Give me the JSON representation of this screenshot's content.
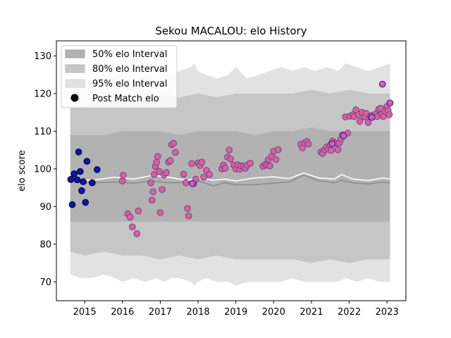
{
  "chart_data": {
    "type": "scatter",
    "title": "Sekou MACALOU: elo History",
    "xlabel": "",
    "ylabel": "elo score",
    "xlim": [
      2014.25,
      2023.5
    ],
    "ylim": [
      65,
      134
    ],
    "x_ticks": [
      2015,
      2016,
      2017,
      2018,
      2019,
      2020,
      2021,
      2022,
      2023
    ],
    "y_ticks": [
      70,
      80,
      90,
      100,
      110,
      120,
      130
    ],
    "legend": {
      "position": "top-left",
      "entries": [
        {
          "label": "50% elo Interval",
          "color": "#b2b2b2"
        },
        {
          "label": "80% elo Interval",
          "color": "#c6c6c6"
        },
        {
          "label": "95% elo Interval",
          "color": "#e2e2e2"
        },
        {
          "label": "Post Match elo",
          "color": "#000000"
        }
      ]
    },
    "colors": {
      "band_95": "#e2e2e2",
      "band_80": "#c6c6c6",
      "band_50": "#b2b2b2",
      "median_line": "#8c8c8c",
      "mean_line": "#ffffff",
      "blue_marker": "#0a13cc",
      "pink_marker": "#e65c9c",
      "pink_edge": "#5b4a8c"
    },
    "bands": {
      "band_95": {
        "x": [
          2014.62,
          2014.9,
          2015.2,
          2015.5,
          2015.8,
          2016.0,
          2016.3,
          2016.6,
          2016.9,
          2017.1,
          2017.3,
          2017.5,
          2017.8,
          2017.9,
          2018.0,
          2018.2,
          2018.5,
          2018.8,
          2019.0,
          2019.3,
          2019.6,
          2019.9,
          2020.2,
          2020.5,
          2020.8,
          2021.1,
          2021.4,
          2021.7,
          2021.9,
          2022.2,
          2022.5,
          2022.8,
          2023.08
        ],
        "upper": [
          123,
          124,
          123,
          125,
          124,
          126,
          123,
          124,
          126,
          127,
          125,
          126,
          127,
          128,
          126,
          125,
          124,
          125,
          127,
          124,
          125,
          126,
          127,
          126,
          127,
          126,
          127,
          126,
          128,
          127,
          126,
          127,
          128
        ],
        "lower": [
          72,
          71,
          71,
          72,
          71,
          70,
          71,
          70,
          71,
          70,
          71,
          71,
          70,
          69,
          70,
          71,
          70,
          70,
          69,
          70,
          70,
          70,
          70,
          71,
          70,
          70,
          70,
          70,
          71,
          70,
          71,
          70,
          70
        ]
      },
      "band_80": {
        "x": [
          2014.62,
          2015.0,
          2015.5,
          2016.0,
          2016.5,
          2017.0,
          2017.5,
          2018.0,
          2018.5,
          2019.0,
          2019.5,
          2020.0,
          2020.5,
          2021.0,
          2021.5,
          2022.0,
          2022.5,
          2023.08
        ],
        "upper": [
          116,
          117,
          118,
          119,
          120,
          120,
          119,
          120,
          119,
          120,
          120,
          120,
          120,
          121,
          120,
          121,
          120,
          120
        ],
        "lower": [
          78,
          77,
          78,
          77,
          77,
          76,
          77,
          76,
          77,
          76,
          76,
          76,
          76,
          75,
          76,
          75,
          76,
          76
        ]
      },
      "band_50": {
        "x": [
          2014.62,
          2015.0,
          2015.5,
          2016.0,
          2016.5,
          2017.0,
          2017.5,
          2018.0,
          2018.5,
          2019.0,
          2019.5,
          2020.0,
          2020.5,
          2021.0,
          2021.5,
          2022.0,
          2022.5,
          2023.08
        ],
        "upper": [
          109,
          109,
          109,
          110,
          110,
          110,
          109,
          110,
          110,
          110,
          109,
          110,
          110,
          111,
          110,
          110,
          110,
          110
        ],
        "lower": [
          86,
          86,
          86,
          86,
          86,
          86,
          86,
          86,
          86,
          86,
          86,
          86,
          86,
          86,
          86,
          86,
          86,
          86
        ]
      }
    },
    "series": [
      {
        "style": "line-gray",
        "x": [
          2014.62,
          2015.2,
          2015.8,
          2016.3,
          2016.8,
          2017.2,
          2017.7,
          2018.0,
          2018.4,
          2018.7,
          2019.0,
          2019.5,
          2020.0,
          2020.4,
          2020.8,
          2021.2,
          2021.6,
          2021.8,
          2022.1,
          2022.5,
          2022.9,
          2023.08
        ],
        "y": [
          96.5,
          96.3,
          96.5,
          96.2,
          96.8,
          96.3,
          96.4,
          96.8,
          95.5,
          96.3,
          95.8,
          95.8,
          96.2,
          96.5,
          98.3,
          96.8,
          96.3,
          97.0,
          96.3,
          96.0,
          96.5,
          96.2
        ]
      },
      {
        "style": "line-white",
        "x": [
          2014.62,
          2015.2,
          2015.8,
          2016.3,
          2016.8,
          2017.2,
          2017.7,
          2018.0,
          2018.4,
          2018.7,
          2019.0,
          2019.5,
          2020.0,
          2020.4,
          2020.8,
          2021.2,
          2021.6,
          2021.8,
          2022.1,
          2022.5,
          2022.9,
          2023.08
        ],
        "y": [
          97.3,
          97.0,
          97.8,
          97.3,
          98.3,
          97.8,
          97.0,
          97.5,
          97.0,
          97.3,
          96.8,
          97.6,
          97.9,
          97.4,
          98.9,
          97.6,
          97.3,
          98.5,
          97.3,
          96.9,
          97.6,
          97.3
        ]
      },
      {
        "style": "blue-points",
        "x": [
          2014.63,
          2014.67,
          2014.72,
          2014.8,
          2014.84,
          2014.88,
          2014.92,
          2014.96,
          2015.02,
          2015.06,
          2015.2,
          2015.33
        ],
        "y": [
          97.2,
          90.5,
          98.7,
          97.1,
          104.5,
          99.3,
          94.2,
          96.6,
          91.1,
          102.0,
          96.3,
          99.8
        ]
      },
      {
        "style": "pink-points",
        "x": [
          2016.0,
          2016.02,
          2016.14,
          2016.2,
          2016.26,
          2016.38,
          2016.42,
          2016.75,
          2016.78,
          2016.81,
          2016.84,
          2016.87,
          2016.9,
          2016.93,
          2016.97,
          2017.0,
          2017.05,
          2017.1,
          2017.16,
          2017.22,
          2017.27,
          2017.3,
          2017.35,
          2017.4,
          2017.62,
          2017.68,
          2017.72,
          2017.75,
          2017.83,
          2017.88,
          2017.94,
          2018.0,
          2018.05,
          2018.1,
          2018.15,
          2018.22,
          2018.3,
          2018.63,
          2018.67,
          2018.72,
          2018.78,
          2018.82,
          2018.86,
          2018.95,
          2019.0,
          2019.05,
          2019.1,
          2019.14,
          2019.2,
          2019.25,
          2019.3,
          2019.38,
          2019.72,
          2019.78,
          2019.82,
          2019.86,
          2019.9,
          2019.95,
          2020.0,
          2020.06,
          2020.12,
          2020.72,
          2020.76,
          2020.82,
          2020.88,
          2020.92,
          2021.25,
          2021.3,
          2021.35,
          2021.4,
          2021.45,
          2021.5,
          2021.52,
          2021.56,
          2021.64,
          2021.7,
          2021.74,
          2021.78,
          2021.82,
          2021.9,
          2021.96,
          2022.02,
          2022.1,
          2022.13,
          2022.18,
          2022.24,
          2022.28,
          2022.34,
          2022.4,
          2022.45,
          2022.5,
          2022.56,
          2022.6,
          2022.66,
          2022.7,
          2022.74,
          2022.78,
          2022.83,
          2022.86,
          2022.9,
          2022.95,
          2023.0,
          2023.03,
          2023.06
        ],
        "y": [
          96.8,
          98.3,
          88.1,
          87.2,
          84.6,
          82.8,
          88.8,
          96.3,
          91.7,
          93.9,
          98.5,
          100.6,
          101.7,
          103.3,
          99.3,
          88.4,
          94.5,
          98.4,
          99.0,
          101.8,
          102.2,
          106.4,
          106.8,
          104.4,
          98.6,
          96.3,
          89.5,
          87.5,
          101.4,
          96.1,
          97.3,
          101.6,
          100.9,
          101.8,
          97.8,
          99.6,
          98.5,
          100.0,
          101.0,
          100.2,
          103.1,
          105.0,
          102.6,
          101.0,
          100.0,
          101.1,
          99.9,
          100.8,
          100.6,
          100.2,
          101.0,
          101.5,
          100.7,
          101.2,
          101.0,
          102.5,
          100.8,
          103.3,
          104.7,
          102.5,
          105.1,
          106.5,
          105.6,
          106.9,
          107.3,
          106.6,
          104.5,
          104.1,
          105.1,
          105.8,
          105.2,
          106.4,
          104.9,
          107.4,
          106.8,
          105.1,
          106.9,
          107.9,
          109.0,
          113.8,
          109.5,
          114.0,
          114.4,
          113.9,
          115.7,
          114.4,
          112.6,
          115.0,
          113.8,
          114.7,
          112.3,
          113.9,
          114.2,
          114.1,
          114.6,
          113.9,
          115.8,
          116.1,
          114.5,
          113.9,
          115.2,
          116.6,
          115.5,
          114.4
        ]
      },
      {
        "style": "pink-points-navy",
        "x": [
          2017.85,
          2021.55,
          2021.85,
          2022.6,
          2022.88,
          2023.08
        ],
        "y": [
          96.1,
          106.7,
          108.8,
          113.7,
          122.5,
          117.5
        ]
      }
    ]
  }
}
